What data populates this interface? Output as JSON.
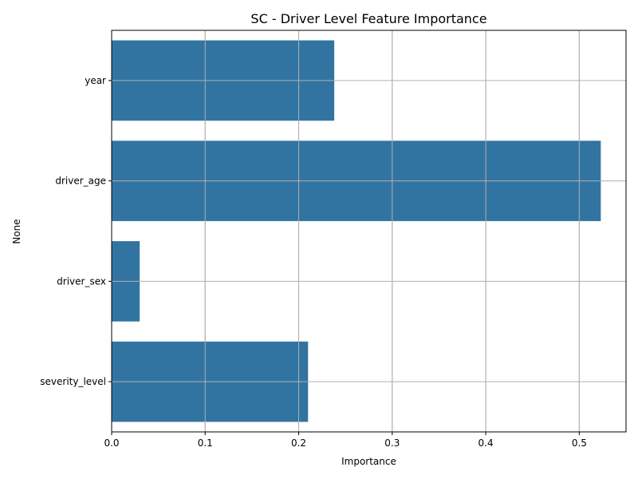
{
  "chart_data": {
    "type": "bar",
    "orientation": "horizontal",
    "title": "SC - Driver Level Feature Importance",
    "xlabel": "Importance",
    "ylabel": "None",
    "categories": [
      "year",
      "driver_age",
      "driver_sex",
      "severity_level"
    ],
    "values": [
      0.238,
      0.523,
      0.03,
      0.21
    ],
    "xlim": [
      0,
      0.55
    ],
    "xticks": [
      0.0,
      0.1,
      0.2,
      0.3,
      0.4,
      0.5
    ],
    "xtick_labels": [
      "0.0",
      "0.1",
      "0.2",
      "0.3",
      "0.4",
      "0.5"
    ],
    "grid": true,
    "bar_color": "#3274a1",
    "grid_color": "#b0b0b0"
  }
}
